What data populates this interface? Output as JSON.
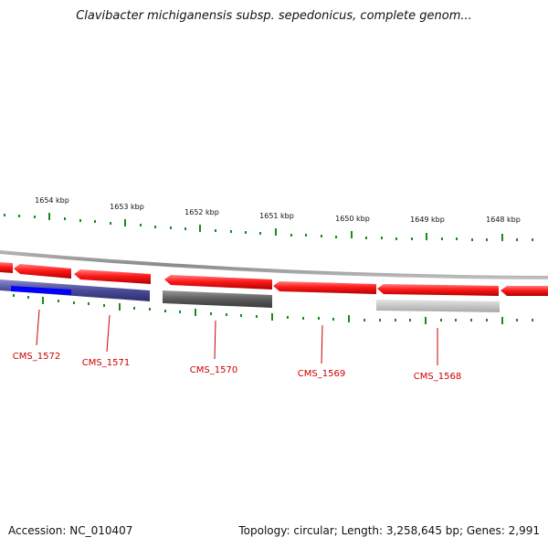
{
  "title": "Clavibacter michiganensis subsp. sepedonicus, complete genom...",
  "footer": {
    "accession": "Accession: NC_010407",
    "summary": "Topology: circular; Length: 3,258,645 bp; Genes: 2,991"
  },
  "colors": {
    "forward_gene": "#ff1a1a",
    "reverse_gene": "#5a5aa0",
    "highlight": "#0000ff",
    "dark_gene": "#606060",
    "light_gene": "#c8c8c8",
    "backbone": "#909090",
    "tick": "#1a8a1a",
    "label": "#cc0000"
  },
  "scale_labels": [
    "1654 kbp",
    "1653 kbp",
    "1652 kbp",
    "1651 kbp",
    "1650 kbp",
    "1649 kbp",
    "1648 kbp"
  ],
  "genes": [
    {
      "name": "CMS_1572"
    },
    {
      "name": "CMS_1571"
    },
    {
      "name": "CMS_1570"
    },
    {
      "name": "CMS_1569"
    },
    {
      "name": "CMS_1568"
    }
  ]
}
